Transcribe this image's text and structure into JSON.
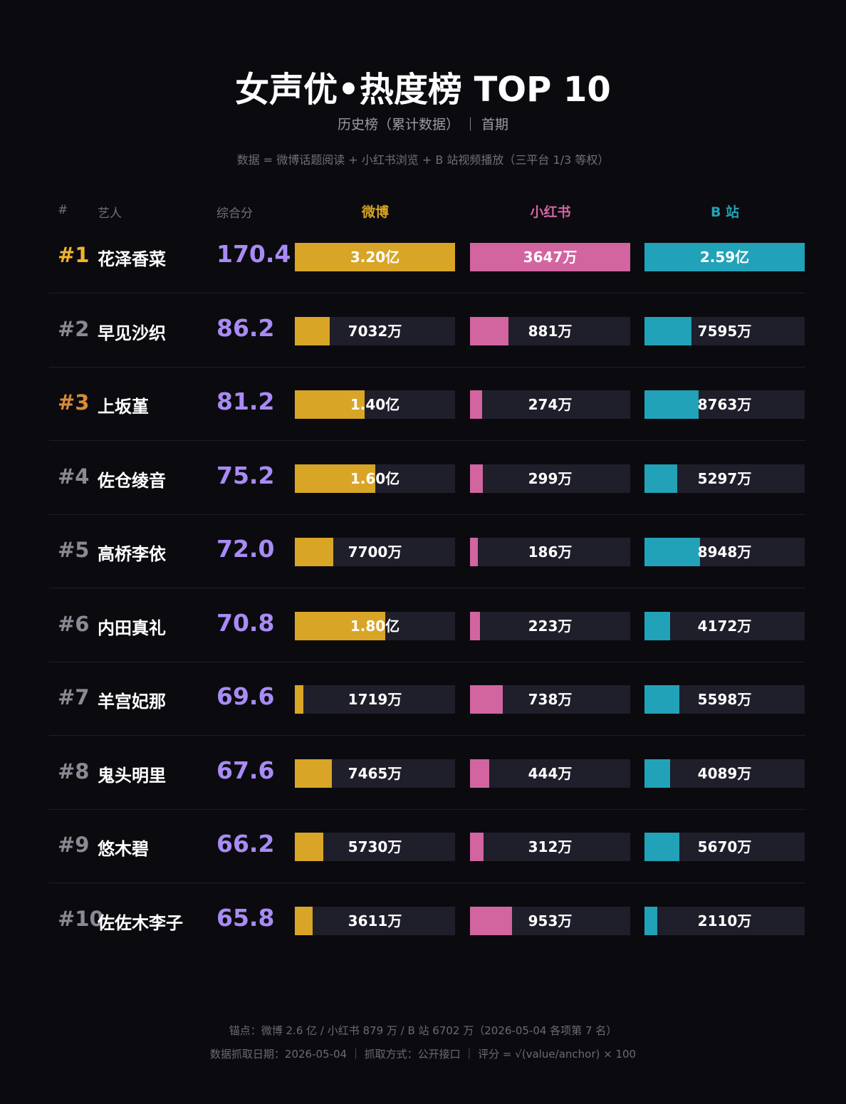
{
  "title": "女声优•热度榜 TOP 10",
  "subtitle": "历史榜（累计数据） ｜ 首期",
  "note": "数据 = 微博话题阅读 + 小红书浏览 + B 站视频播放（三平台 1/3 等权）",
  "headers": {
    "rank": "#",
    "artist": "艺人",
    "score": "综合分",
    "weibo": "微博",
    "xhs": "小红书",
    "bili": "B 站"
  },
  "colors": {
    "weibo": "#d9a526",
    "xhs": "#d264a0",
    "bili": "#21a2b8",
    "score": "#a98bf5",
    "rank1": "#f2b42b",
    "rank3": "#d98a3a",
    "rank_other": "#8a8a94"
  },
  "chart_data": {
    "type": "table",
    "columns": [
      "rank",
      "name",
      "score",
      "weibo",
      "xhs",
      "bili"
    ],
    "axis_max": {
      "weibo": 3.2,
      "xhs": 0.3647,
      "bili": 2.59
    },
    "rows": [
      {
        "rank": "#1",
        "name": "花泽香菜",
        "score": "170.4",
        "weibo": 3.2,
        "weibo_label": "3.20亿",
        "xhs": 0.3647,
        "xhs_label": "3647万",
        "bili": 2.59,
        "bili_label": "2.59亿"
      },
      {
        "rank": "#2",
        "name": "早见沙织",
        "score": "86.2",
        "weibo": 0.7032,
        "weibo_label": "7032万",
        "xhs": 0.0881,
        "xhs_label": "881万",
        "bili": 0.7595,
        "bili_label": "7595万"
      },
      {
        "rank": "#3",
        "name": "上坂堇",
        "score": "81.2",
        "weibo": 1.4,
        "weibo_label": "1.40亿",
        "xhs": 0.0274,
        "xhs_label": "274万",
        "bili": 0.8763,
        "bili_label": "8763万"
      },
      {
        "rank": "#4",
        "name": "佐仓绫音",
        "score": "75.2",
        "weibo": 1.6,
        "weibo_label": "1.60亿",
        "xhs": 0.0299,
        "xhs_label": "299万",
        "bili": 0.5297,
        "bili_label": "5297万"
      },
      {
        "rank": "#5",
        "name": "高桥李依",
        "score": "72.0",
        "weibo": 0.77,
        "weibo_label": "7700万",
        "xhs": 0.0186,
        "xhs_label": "186万",
        "bili": 0.8948,
        "bili_label": "8948万"
      },
      {
        "rank": "#6",
        "name": "内田真礼",
        "score": "70.8",
        "weibo": 1.8,
        "weibo_label": "1.80亿",
        "xhs": 0.0223,
        "xhs_label": "223万",
        "bili": 0.4172,
        "bili_label": "4172万"
      },
      {
        "rank": "#7",
        "name": "羊宫妃那",
        "score": "69.6",
        "weibo": 0.1719,
        "weibo_label": "1719万",
        "xhs": 0.0738,
        "xhs_label": "738万",
        "bili": 0.5598,
        "bili_label": "5598万"
      },
      {
        "rank": "#8",
        "name": "鬼头明里",
        "score": "67.6",
        "weibo": 0.7465,
        "weibo_label": "7465万",
        "xhs": 0.0444,
        "xhs_label": "444万",
        "bili": 0.4089,
        "bili_label": "4089万"
      },
      {
        "rank": "#9",
        "name": "悠木碧",
        "score": "66.2",
        "weibo": 0.573,
        "weibo_label": "5730万",
        "xhs": 0.0312,
        "xhs_label": "312万",
        "bili": 0.567,
        "bili_label": "5670万"
      },
      {
        "rank": "#10",
        "name": "佐佐木李子",
        "score": "65.8",
        "weibo": 0.3611,
        "weibo_label": "3611万",
        "xhs": 0.0953,
        "xhs_label": "953万",
        "bili": 0.211,
        "bili_label": "2110万"
      }
    ]
  },
  "footer": {
    "line1": "锚点：微博 2.6 亿 / 小红书 879 万 / B 站 6702 万（2026-05-04 各项第 7 名）",
    "line2": "数据抓取日期：2026-05-04 ｜ 抓取方式：公开接口 ｜ 评分 = √(value/anchor) × 100"
  }
}
